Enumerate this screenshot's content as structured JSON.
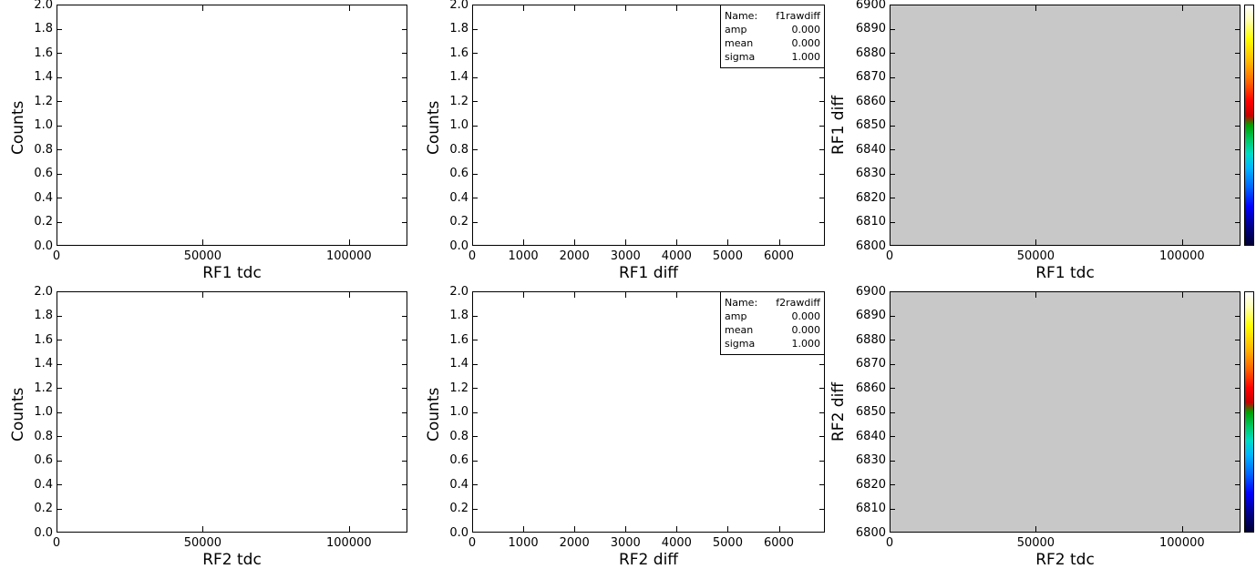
{
  "chart_data": [
    {
      "id": "rf1tdc",
      "type": "bar",
      "xlabel": "RF1 tdc",
      "ylabel": "Counts",
      "xlim": [
        0,
        120000
      ],
      "ylim": [
        0,
        2.0
      ],
      "xticks": [
        "0",
        "50000",
        "100000"
      ],
      "xtick_values": [
        0,
        50000,
        100000
      ],
      "yticks": [
        "0.0",
        "0.2",
        "0.4",
        "0.6",
        "0.8",
        "1.0",
        "1.2",
        "1.4",
        "1.6",
        "1.8",
        "2.0"
      ],
      "values": []
    },
    {
      "id": "rf1diff",
      "type": "bar",
      "xlabel": "RF1 diff",
      "ylabel": "Counts",
      "xlim": [
        0,
        6900
      ],
      "ylim": [
        0,
        2.0
      ],
      "xticks": [
        "0",
        "1000",
        "2000",
        "3000",
        "4000",
        "5000",
        "6000"
      ],
      "xtick_values": [
        0,
        1000,
        2000,
        3000,
        4000,
        5000,
        6000
      ],
      "yticks": [
        "0.0",
        "0.2",
        "0.4",
        "0.6",
        "0.8",
        "1.0",
        "1.2",
        "1.4",
        "1.6",
        "1.8",
        "2.0"
      ],
      "values": [],
      "stats": {
        "name_label": "Name:",
        "name": "f1rawdiff",
        "rows": [
          {
            "k": "amp",
            "v": "0.000"
          },
          {
            "k": "mean",
            "v": "0.000"
          },
          {
            "k": "sigma",
            "v": "1.000"
          }
        ]
      }
    },
    {
      "id": "rf1heat",
      "type": "heatmap",
      "xlabel": "RF1 tdc",
      "ylabel": "RF1 diff",
      "xlim": [
        0,
        120000
      ],
      "ylim": [
        6800,
        6900
      ],
      "xticks": [
        "0",
        "50000",
        "100000"
      ],
      "xtick_values": [
        0,
        50000,
        100000
      ],
      "yticks": [
        "6800",
        "6810",
        "6820",
        "6830",
        "6840",
        "6850",
        "6860",
        "6870",
        "6880",
        "6890",
        "6900"
      ],
      "values": [],
      "background": "#c8c8c8"
    },
    {
      "id": "rf2tdc",
      "type": "bar",
      "xlabel": "RF2 tdc",
      "ylabel": "Counts",
      "xlim": [
        0,
        120000
      ],
      "ylim": [
        0,
        2.0
      ],
      "xticks": [
        "0",
        "50000",
        "100000"
      ],
      "xtick_values": [
        0,
        50000,
        100000
      ],
      "yticks": [
        "0.0",
        "0.2",
        "0.4",
        "0.6",
        "0.8",
        "1.0",
        "1.2",
        "1.4",
        "1.6",
        "1.8",
        "2.0"
      ],
      "values": []
    },
    {
      "id": "rf2diff",
      "type": "bar",
      "xlabel": "RF2 diff",
      "ylabel": "Counts",
      "xlim": [
        0,
        6900
      ],
      "ylim": [
        0,
        2.0
      ],
      "xticks": [
        "0",
        "1000",
        "2000",
        "3000",
        "4000",
        "5000",
        "6000"
      ],
      "xtick_values": [
        0,
        1000,
        2000,
        3000,
        4000,
        5000,
        6000
      ],
      "yticks": [
        "0.0",
        "0.2",
        "0.4",
        "0.6",
        "0.8",
        "1.0",
        "1.2",
        "1.4",
        "1.6",
        "1.8",
        "2.0"
      ],
      "values": [],
      "stats": {
        "name_label": "Name:",
        "name": "f2rawdiff",
        "rows": [
          {
            "k": "amp",
            "v": "0.000"
          },
          {
            "k": "mean",
            "v": "0.000"
          },
          {
            "k": "sigma",
            "v": "1.000"
          }
        ]
      }
    },
    {
      "id": "rf2heat",
      "type": "heatmap",
      "xlabel": "RF2 tdc",
      "ylabel": "RF2 diff",
      "xlim": [
        0,
        120000
      ],
      "ylim": [
        6800,
        6900
      ],
      "xticks": [
        "0",
        "50000",
        "100000"
      ],
      "xtick_values": [
        0,
        50000,
        100000
      ],
      "yticks": [
        "6800",
        "6810",
        "6820",
        "6830",
        "6840",
        "6850",
        "6860",
        "6870",
        "6880",
        "6890",
        "6900"
      ],
      "values": [],
      "background": "#c8c8c8"
    }
  ]
}
